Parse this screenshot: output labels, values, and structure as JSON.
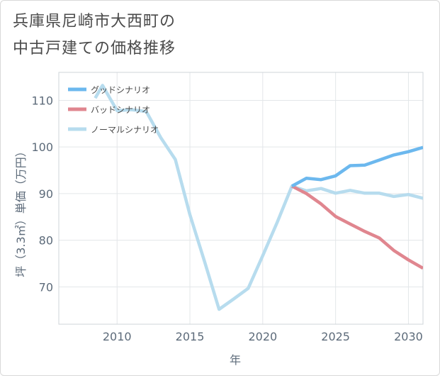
{
  "chart_data": {
    "type": "line",
    "title": "兵庫県尼崎市大西町の中古戸建ての価格推移",
    "title_lines": [
      "兵庫県尼崎市大西町の",
      "中古戸建ての価格推移"
    ],
    "xlabel": "年",
    "ylabel": "坪（3.3㎡）単価（万円）",
    "xlim": [
      2006,
      2031
    ],
    "ylim": [
      62,
      116
    ],
    "xticks": [
      2010,
      2015,
      2020,
      2025,
      2030
    ],
    "yticks": [
      70,
      80,
      90,
      100,
      110
    ],
    "grid": true,
    "legend_position": "top-left",
    "series": [
      {
        "name": "グッドシナリオ",
        "color": "#6cb8ee",
        "x": [
          2022,
          2023,
          2024,
          2025,
          2026,
          2027,
          2028,
          2029,
          2030,
          2031
        ],
        "y": [
          91.6,
          93.3,
          93.0,
          93.8,
          96.0,
          96.1,
          97.2,
          98.3,
          99.0,
          99.9
        ]
      },
      {
        "name": "バッドシナリオ",
        "color": "#e0868f",
        "x": [
          2022,
          2023,
          2024,
          2025,
          2026,
          2027,
          2028,
          2029,
          2030,
          2031
        ],
        "y": [
          91.6,
          90.0,
          87.8,
          85.1,
          83.5,
          81.9,
          80.5,
          77.8,
          75.8,
          74.0
        ]
      },
      {
        "name": "ノーマルシナリオ",
        "color": "#b7dcee",
        "x": [
          2008.5,
          2009,
          2010,
          2011,
          2012,
          2013,
          2014,
          2015,
          2016,
          2017,
          2018,
          2019,
          2020,
          2021,
          2022,
          2023,
          2024,
          2025,
          2026,
          2027,
          2028,
          2029,
          2030,
          2031
        ],
        "y": [
          110.5,
          113.2,
          107.8,
          108.0,
          107.6,
          102.0,
          97.3,
          85.5,
          75.5,
          65.2,
          67.4,
          69.7,
          76.7,
          83.9,
          91.6,
          90.6,
          91.1,
          90.1,
          90.7,
          90.1,
          90.1,
          89.4,
          89.8,
          89.0
        ]
      }
    ]
  }
}
